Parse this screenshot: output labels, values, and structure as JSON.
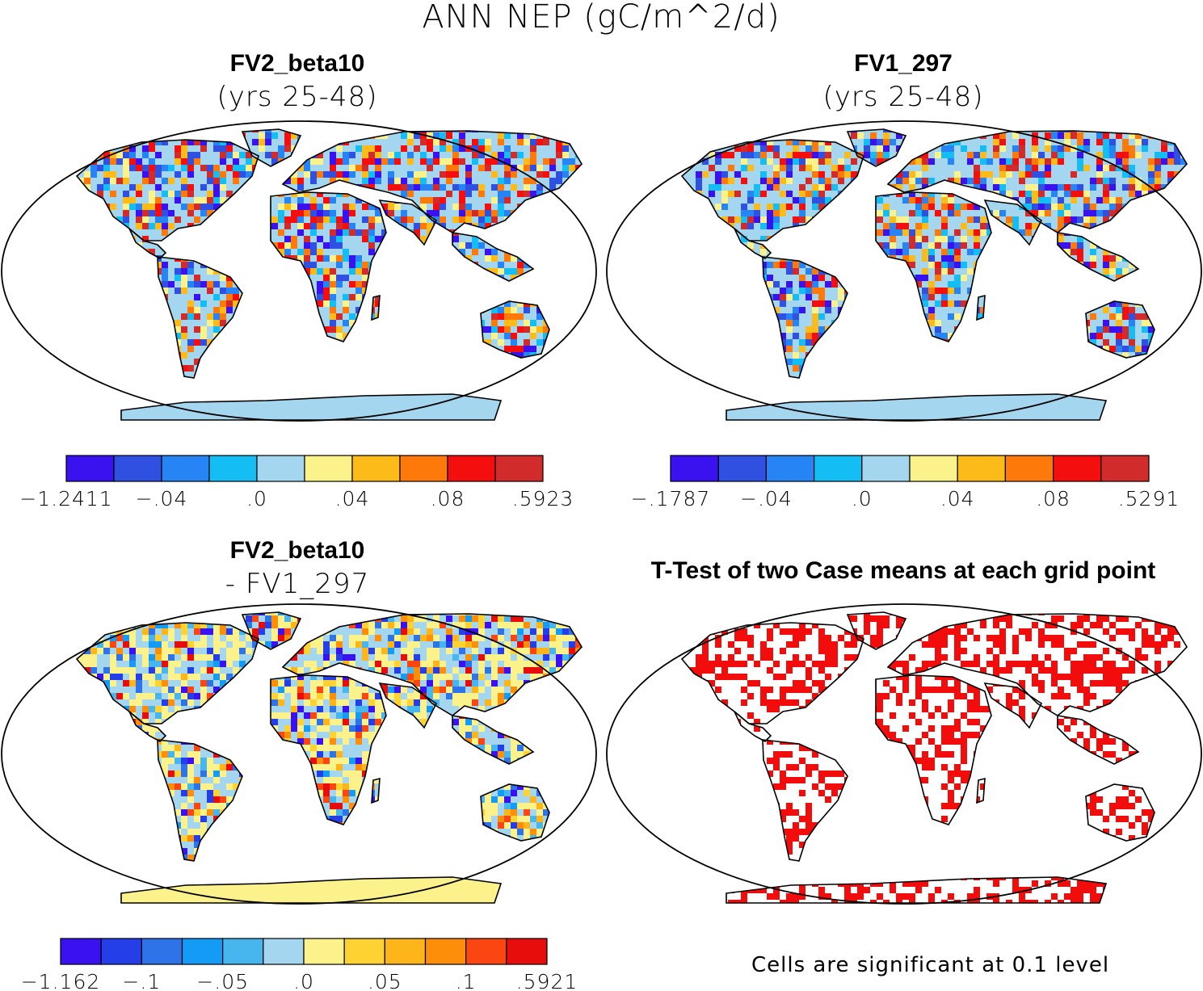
{
  "figure": {
    "title": "ANN NEP (gC/m^2/d)",
    "note": "Cells are significant at 0.1 level"
  },
  "chart_data": [
    {
      "type": "heatmap",
      "panel": "top-left",
      "title": "FV2_beta10",
      "subtitle": "(yrs 25-48)",
      "projection": "Robinson world map",
      "colorbar": {
        "colors": [
          "#3a12f0",
          "#2f50e0",
          "#2684f5",
          "#14bef5",
          "#a4d6f0",
          "#fcf28c",
          "#fdbb1a",
          "#fd7a0a",
          "#f50e0e",
          "#d22b2b"
        ],
        "tick_labels": [
          "-1.2411",
          "-.04",
          ".0",
          ".04",
          ".08",
          ".5923"
        ]
      }
    },
    {
      "type": "heatmap",
      "panel": "top-right",
      "title": "FV1_297",
      "subtitle": "(yrs 25-48)",
      "projection": "Robinson world map",
      "colorbar": {
        "colors": [
          "#3a12f0",
          "#2f50e0",
          "#2684f5",
          "#14bef5",
          "#a4d6f0",
          "#fcf28c",
          "#fdbb1a",
          "#fd7a0a",
          "#f50e0e",
          "#d22b2b"
        ],
        "tick_labels": [
          "-.1787",
          "-.04",
          ".0",
          ".04",
          ".08",
          ".5291"
        ]
      }
    },
    {
      "type": "heatmap",
      "panel": "bottom-left",
      "title": "FV2_beta10",
      "subtitle": "- FV1_297",
      "projection": "Robinson world map",
      "colorbar": {
        "colors": [
          "#3a12f0",
          "#243ee8",
          "#2f73e8",
          "#149bf5",
          "#47b6ee",
          "#a4d6f0",
          "#fcf28c",
          "#fdd232",
          "#fdb51a",
          "#fd8e0a",
          "#fc4612",
          "#e80d0d"
        ],
        "tick_labels": [
          "-1.162",
          "-.1",
          "-.05",
          ".0",
          ".05",
          ".1",
          ".5921"
        ]
      }
    },
    {
      "type": "heatmap",
      "panel": "bottom-right",
      "title": "T-Test of two Case means at each grid point",
      "subtitle": "",
      "projection": "Robinson world map",
      "significant_color": "#f20c0c"
    }
  ]
}
